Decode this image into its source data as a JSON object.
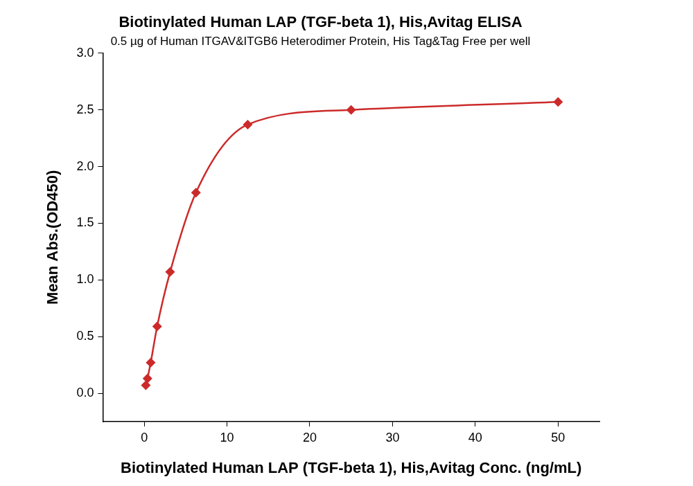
{
  "chart_data": {
    "type": "scatter",
    "title": "Biotinylated Human LAP (TGF-beta 1), His,Avitag ELISA",
    "subtitle": "0.5 µg of Human ITGAV&ITGB6 Heterodimer Protein, His Tag&Tag Free per well",
    "x_label": "Biotinylated Human LAP (TGF-beta 1), His,Avitag Conc. (ng/mL)",
    "y_label": "Mean Abs.(OD450)",
    "x": [
      0.195,
      0.39,
      0.78,
      1.56,
      3.125,
      6.25,
      12.5,
      25,
      50
    ],
    "values": [
      0.07,
      0.13,
      0.27,
      0.59,
      1.07,
      1.77,
      2.37,
      2.5,
      2.57
    ],
    "color": "#cc2a2a",
    "marker": "diamond",
    "line_style": "solid",
    "xlim": [
      -5,
      55
    ],
    "xticks": [
      0,
      10,
      20,
      30,
      40,
      50
    ],
    "ylim": [
      -0.25,
      3.0
    ],
    "yticks": [
      {
        "value": 0,
        "label": "0.0"
      },
      0.5,
      {
        "value": 1,
        "label": "1.0"
      },
      1.5,
      {
        "value": 2,
        "label": "2.0"
      },
      2.5,
      {
        "value": 3,
        "label": "3.0"
      }
    ],
    "grid": false
  }
}
